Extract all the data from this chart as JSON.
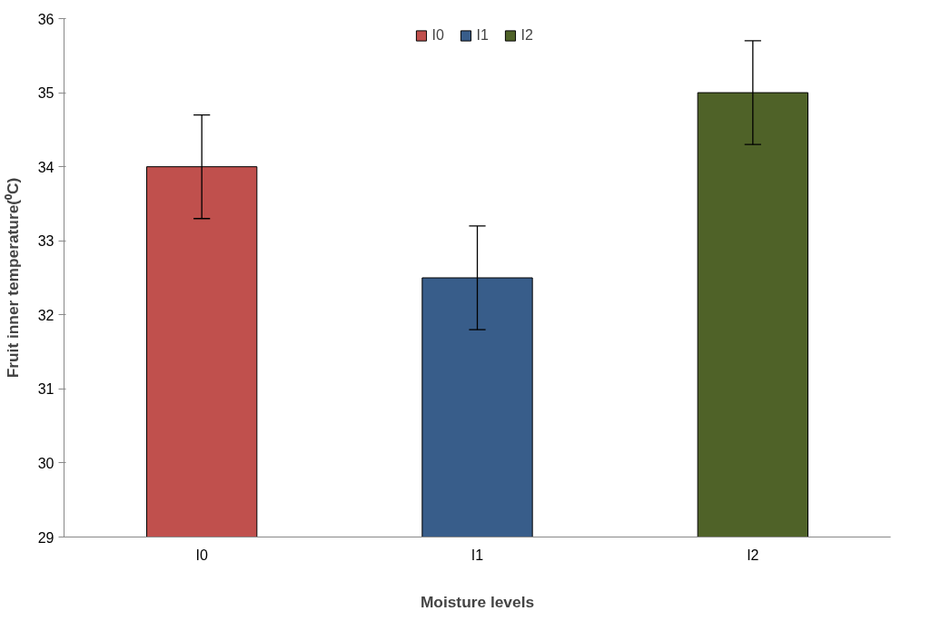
{
  "chart_data": {
    "type": "bar",
    "xlabel": "Moisture levels",
    "ylabel": "Fruit inner temperature(⁰C)",
    "categories": [
      "I0",
      "I1",
      "I2"
    ],
    "series": [
      {
        "name": "I0",
        "color": "#c0504d",
        "values": [
          34.0,
          null,
          null
        ],
        "errors": [
          0.7,
          null,
          null
        ]
      },
      {
        "name": "I1",
        "color": "#385d8a",
        "values": [
          null,
          32.5,
          null
        ],
        "errors": [
          null,
          0.7,
          null
        ]
      },
      {
        "name": "I2",
        "color": "#4f6228",
        "values": [
          null,
          null,
          35.0
        ],
        "errors": [
          null,
          null,
          0.7
        ]
      }
    ],
    "ylim": [
      29,
      36
    ],
    "yticks": [
      29,
      30,
      31,
      32,
      33,
      34,
      35,
      36
    ],
    "grid": false,
    "legend": "top"
  }
}
